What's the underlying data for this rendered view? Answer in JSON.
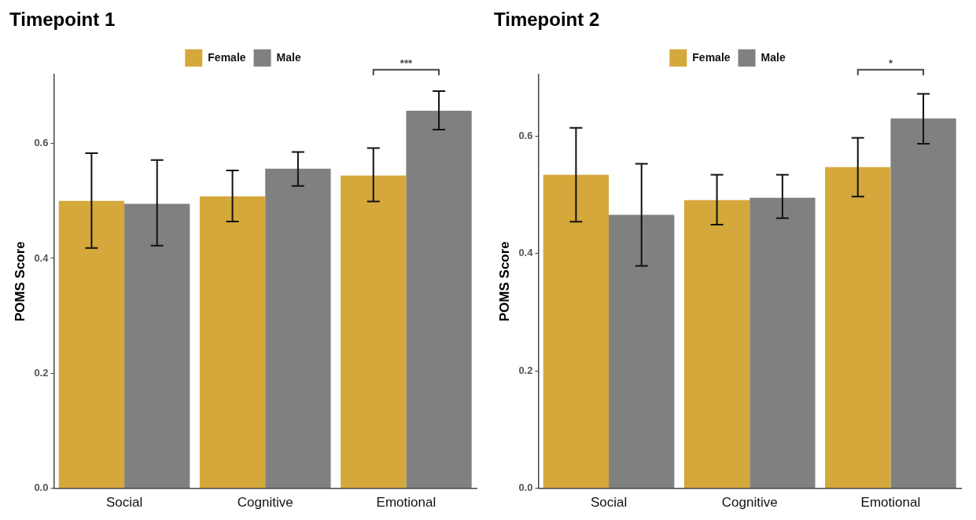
{
  "chart_data": [
    {
      "type": "bar",
      "title": "Timepoint 1",
      "ylabel": "POMS Score",
      "categories": [
        "Social",
        "Cognitive",
        "Emotional"
      ],
      "legend": "top",
      "grid": false,
      "ylim": [
        0,
        0.72
      ],
      "yticks": [
        {
          "value": 0,
          "label": "0.0"
        },
        {
          "value": 0.2,
          "label": "0.2"
        },
        {
          "value": 0.4,
          "label": "0.4"
        },
        {
          "value": 0.6,
          "label": "0.6"
        }
      ],
      "annotations": [
        "***"
      ],
      "series": [
        {
          "name": "Female",
          "color": "#d4a83a",
          "values": [
            0.5,
            0.508,
            0.544
          ],
          "errors": [
            [
              0.418,
              0.583
            ],
            [
              0.464,
              0.553
            ],
            [
              0.499,
              0.592
            ]
          ]
        },
        {
          "name": "Male",
          "color": "#808080",
          "values": [
            0.495,
            0.556,
            0.657
          ],
          "errors": [
            [
              0.422,
              0.571
            ],
            [
              0.526,
              0.585
            ],
            [
              0.624,
              0.691
            ]
          ]
        }
      ]
    },
    {
      "type": "bar",
      "title": "Timepoint 2",
      "ylabel": "POMS Score",
      "categories": [
        "Social",
        "Cognitive",
        "Emotional"
      ],
      "legend": "top",
      "grid": false,
      "ylim": [
        0,
        0.705
      ],
      "yticks": [
        {
          "value": 0,
          "label": "0.0"
        },
        {
          "value": 0.2,
          "label": "0.2"
        },
        {
          "value": 0.4,
          "label": "0.4"
        },
        {
          "value": 0.6,
          "label": "0.6"
        }
      ],
      "annotations": [
        "*"
      ],
      "series": [
        {
          "name": "Female",
          "color": "#d4a83a",
          "values": [
            0.534,
            0.491,
            0.547
          ],
          "errors": [
            [
              0.454,
              0.614
            ],
            [
              0.449,
              0.534
            ],
            [
              0.497,
              0.597
            ]
          ]
        },
        {
          "name": "Male",
          "color": "#808080",
          "values": [
            0.466,
            0.495,
            0.63
          ],
          "errors": [
            [
              0.379,
              0.553
            ],
            [
              0.46,
              0.534
            ],
            [
              0.587,
              0.672
            ]
          ]
        }
      ]
    }
  ]
}
